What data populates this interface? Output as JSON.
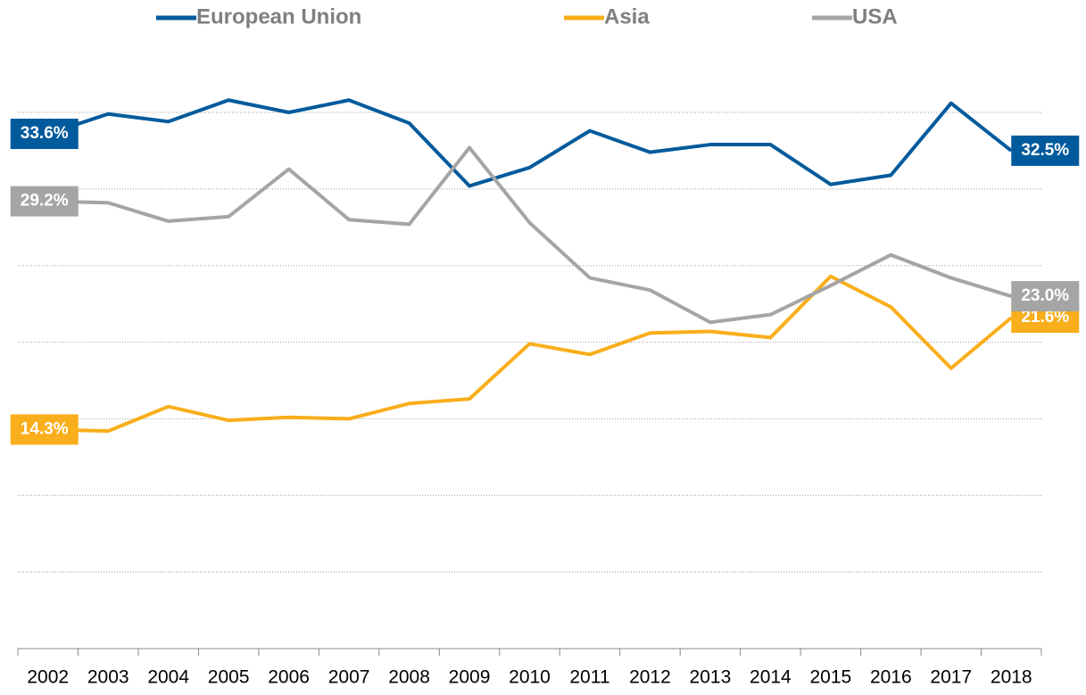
{
  "chart_data": {
    "type": "line",
    "categories": [
      "2002",
      "2003",
      "2004",
      "2005",
      "2006",
      "2007",
      "2008",
      "2009",
      "2010",
      "2011",
      "2012",
      "2013",
      "2014",
      "2015",
      "2016",
      "2017",
      "2018"
    ],
    "series": [
      {
        "name": "European Union",
        "color": "#005a9c",
        "values": [
          33.6,
          34.9,
          34.4,
          35.8,
          35.0,
          35.8,
          34.3,
          30.2,
          31.4,
          33.8,
          32.4,
          32.9,
          32.9,
          30.3,
          30.9,
          35.6,
          32.5
        ],
        "value_labels": [
          "33.6%",
          null,
          null,
          null,
          null,
          null,
          null,
          null,
          null,
          null,
          null,
          null,
          null,
          null,
          null,
          null,
          "32.5%"
        ]
      },
      {
        "name": "Asia",
        "color": "#f9ae1b",
        "values": [
          14.3,
          14.2,
          15.8,
          14.9,
          15.1,
          15.0,
          16.0,
          16.3,
          19.9,
          19.2,
          20.6,
          20.7,
          20.3,
          24.3,
          22.3,
          18.3,
          21.6
        ],
        "value_labels": [
          "14.3%",
          null,
          null,
          null,
          null,
          null,
          null,
          null,
          null,
          null,
          null,
          null,
          null,
          null,
          null,
          null,
          "21.6%"
        ]
      },
      {
        "name": "USA",
        "color": "#a5a5a5",
        "values": [
          29.2,
          29.1,
          27.9,
          28.2,
          31.3,
          28.0,
          27.7,
          32.7,
          27.8,
          24.2,
          23.4,
          21.3,
          21.8,
          23.7,
          25.7,
          24.2,
          23.0
        ],
        "value_labels": [
          "29.2%",
          null,
          null,
          null,
          null,
          null,
          null,
          null,
          null,
          null,
          null,
          null,
          null,
          null,
          null,
          null,
          "23.0%"
        ]
      }
    ],
    "ylim": [
      0,
      35
    ],
    "yticks": [
      0,
      5,
      10,
      15,
      20,
      25,
      30,
      35
    ],
    "grid": true,
    "legend": "top"
  }
}
